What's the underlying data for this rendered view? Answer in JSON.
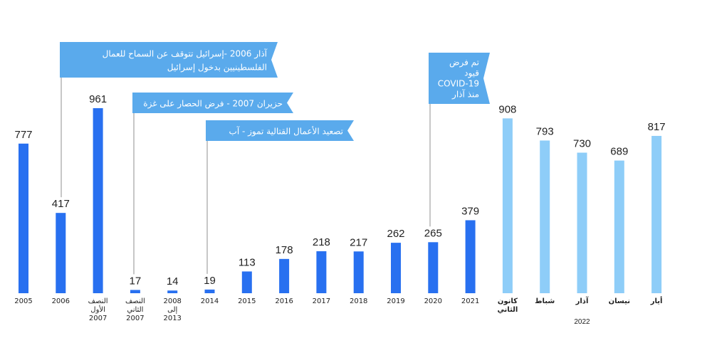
{
  "chart_data": {
    "type": "bar",
    "categories": [
      [
        "2005"
      ],
      [
        "2006"
      ],
      [
        "النصف",
        "الأول",
        "2007"
      ],
      [
        "النصف",
        "الثاني",
        "2007"
      ],
      [
        "2008",
        "إلى",
        "2013"
      ],
      [
        "2014"
      ],
      [
        "2015"
      ],
      [
        "2016"
      ],
      [
        "2017"
      ],
      [
        "2018"
      ],
      [
        "2019"
      ],
      [
        "2020"
      ],
      [
        "2021"
      ],
      [
        "كانون",
        "الثاني"
      ],
      [
        "شباط"
      ],
      [
        "آذار"
      ],
      [
        "نيسان"
      ],
      [
        "أيار"
      ]
    ],
    "values": [
      777,
      417,
      961,
      17,
      14,
      19,
      113,
      178,
      218,
      217,
      262,
      265,
      379,
      908,
      793,
      730,
      689,
      817
    ],
    "group_label": "2022",
    "group_start_index": 13,
    "ylim": [
      0,
      1000
    ],
    "grid": false,
    "legend": "none",
    "colors": {
      "primary": "#2870f0",
      "highlight": "#8ecdf8",
      "callout": "#5aaaec"
    },
    "annotations": [
      {
        "category_index": 1,
        "lines": [
          "آذار 2006 -إسرائيل تتوقف عن السماح للعمال",
          "الفلسطينيين بدخول إسرائيل"
        ]
      },
      {
        "category_index": 3,
        "lines": [
          "حزيران 2007 - فرض الحصار على غزة"
        ]
      },
      {
        "category_index": 5,
        "lines": [
          "تصعيد الأعمال القتالية تموز - آب"
        ]
      },
      {
        "category_index": 11,
        "lines": [
          "تم فرض",
          "قيود",
          "COVID-19",
          "منذ آذار"
        ]
      }
    ]
  }
}
